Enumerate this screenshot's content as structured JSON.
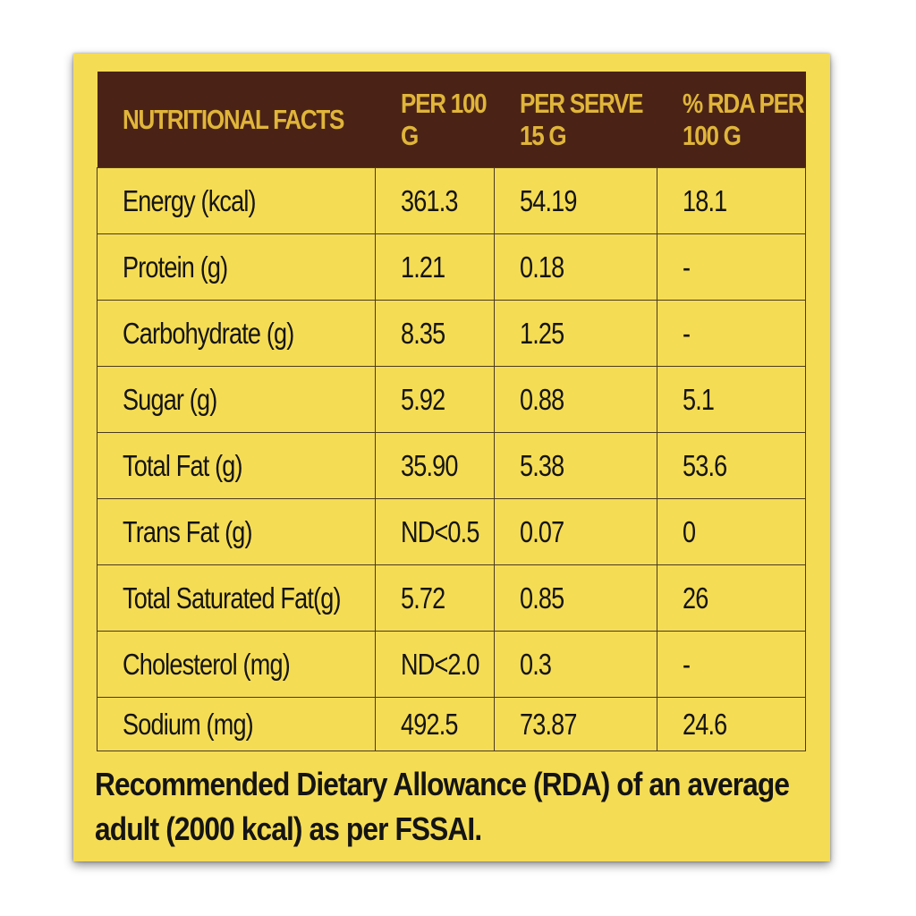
{
  "colors": {
    "panel_background": "#f5dc55",
    "header_background": "#4a2316",
    "header_text": "#e0b53a",
    "body_text": "#141414"
  },
  "table": {
    "headers": [
      "NUTRITIONAL FACTS",
      "PER 100 G",
      "PER SERVE 15 G",
      "% RDA PER 100 G"
    ],
    "rows": [
      [
        "Energy (kcal)",
        "361.3",
        "54.19",
        "18.1"
      ],
      [
        "Protein (g)",
        "1.21",
        "0.18",
        "-"
      ],
      [
        "Carbohydrate (g)",
        "8.35",
        "1.25",
        "-"
      ],
      [
        "Sugar (g)",
        "5.92",
        "0.88",
        "5.1"
      ],
      [
        "Total Fat (g)",
        "35.90",
        "5.38",
        "53.6"
      ],
      [
        "Trans Fat (g)",
        "ND<0.5",
        "0.07",
        "0"
      ],
      [
        "Total Saturated Fat(g)",
        "5.72",
        "0.85",
        "26"
      ],
      [
        "Cholesterol (mg)",
        "ND<2.0",
        "0.3",
        "-"
      ],
      [
        "Sodium (mg)",
        "492.5",
        "73.87",
        "24.6"
      ]
    ]
  },
  "footnote": "Recommended Dietary Allowance (RDA) of an average adult (2000 kcal) as per FSSAI."
}
